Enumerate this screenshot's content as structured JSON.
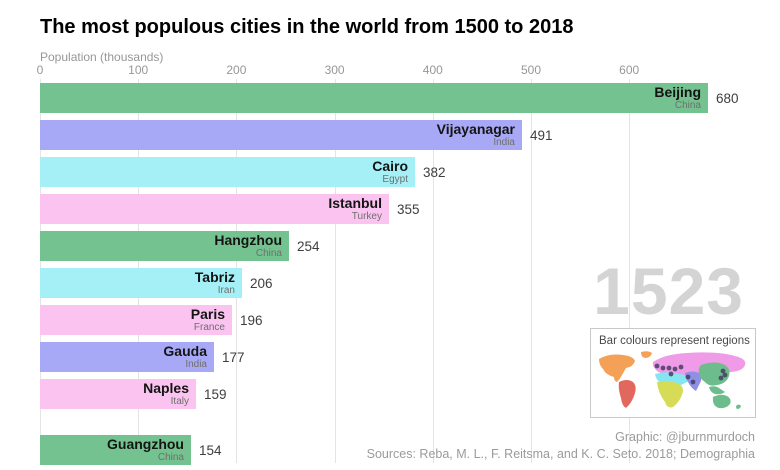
{
  "title": "The most populous cities in the world from 1500 to 2018",
  "axis": {
    "label": "Population (thousands)"
  },
  "year_label": "1523",
  "legend": {
    "title": "Bar colours represent regions"
  },
  "credits": {
    "graphic": "Graphic: @jburnmurdoch",
    "sources": "Sources: Reba, M. L., F. Reitsma, and K. C. Seto. 2018; Demographia"
  },
  "colors": {
    "east_asia": "#74c28f",
    "south_asia": "#a7a9f6",
    "mena": "#a5f0f6",
    "europe": "#fac3f0"
  },
  "map_colors": {
    "north_america": "#f5a057",
    "south_america": "#e2675d",
    "europe_eurasia": "#f09be8",
    "mena": "#85e6f2",
    "africa": "#d6dc55",
    "south_asia": "#8f8fe8",
    "east_asia": "#6cbd8b",
    "dot": "#453f63"
  },
  "chart_data": {
    "type": "bar",
    "orientation": "horizontal",
    "title": "The most populous cities in the world from 1500 to 2018",
    "xlabel": "Population (thousands)",
    "xlim": [
      0,
      690
    ],
    "x_ticks": [
      0,
      100,
      200,
      300,
      400,
      500,
      600
    ],
    "grid": true,
    "year_shown": 1523,
    "legend_note": "Bar colours represent regions",
    "bars": [
      {
        "city": "Beijing",
        "country": "China",
        "value": 680,
        "region": "east_asia"
      },
      {
        "city": "Vijayanagar",
        "country": "India",
        "value": 491,
        "region": "south_asia"
      },
      {
        "city": "Cairo",
        "country": "Egypt",
        "value": 382,
        "region": "mena"
      },
      {
        "city": "Istanbul",
        "country": "Turkey",
        "value": 355,
        "region": "europe"
      },
      {
        "city": "Hangzhou",
        "country": "China",
        "value": 254,
        "region": "east_asia"
      },
      {
        "city": "Tabriz",
        "country": "Iran",
        "value": 206,
        "region": "mena"
      },
      {
        "city": "Paris",
        "country": "France",
        "value": 196,
        "region": "europe"
      },
      {
        "city": "Gauda",
        "country": "India",
        "value": 177,
        "region": "south_asia"
      },
      {
        "city": "Naples",
        "country": "Italy",
        "value": 159,
        "region": "europe"
      },
      {
        "city": "Guangzhou",
        "country": "China",
        "value": 154,
        "region": "east_asia"
      }
    ]
  }
}
